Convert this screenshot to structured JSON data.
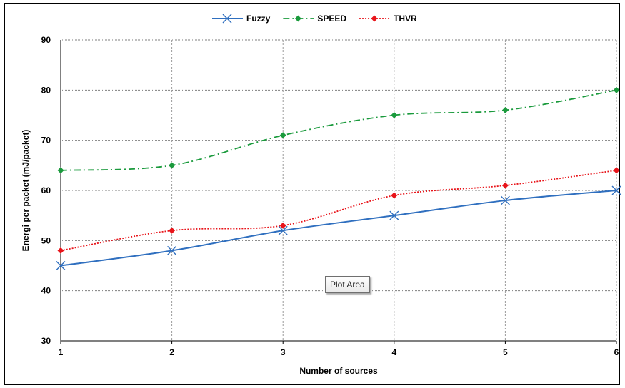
{
  "chart_data": {
    "type": "line",
    "xlabel": "Number of sources",
    "ylabel": "Energi per packet (mJ/packet)",
    "x": [
      1,
      2,
      3,
      4,
      5,
      6
    ],
    "xlim": [
      1,
      6
    ],
    "ylim": [
      30,
      90
    ],
    "yticks": [
      30,
      40,
      50,
      60,
      70,
      80,
      90
    ],
    "grid": true,
    "legend_position": "top",
    "series": [
      {
        "name": "Fuzzy",
        "values": [
          45,
          48,
          52,
          55,
          58,
          60
        ],
        "color": "#2f6fbf",
        "style": "solid",
        "marker": "x"
      },
      {
        "name": "SPEED",
        "values": [
          64,
          65,
          71,
          75,
          76,
          80
        ],
        "color": "#1a9a3c",
        "style": "dashdot",
        "marker": "diamond"
      },
      {
        "name": "THVR",
        "values": [
          48,
          52,
          53,
          59,
          61,
          64
        ],
        "color": "#e8141a",
        "style": "dotted",
        "marker": "diamond"
      }
    ]
  },
  "tooltip": {
    "label": "Plot Area"
  }
}
